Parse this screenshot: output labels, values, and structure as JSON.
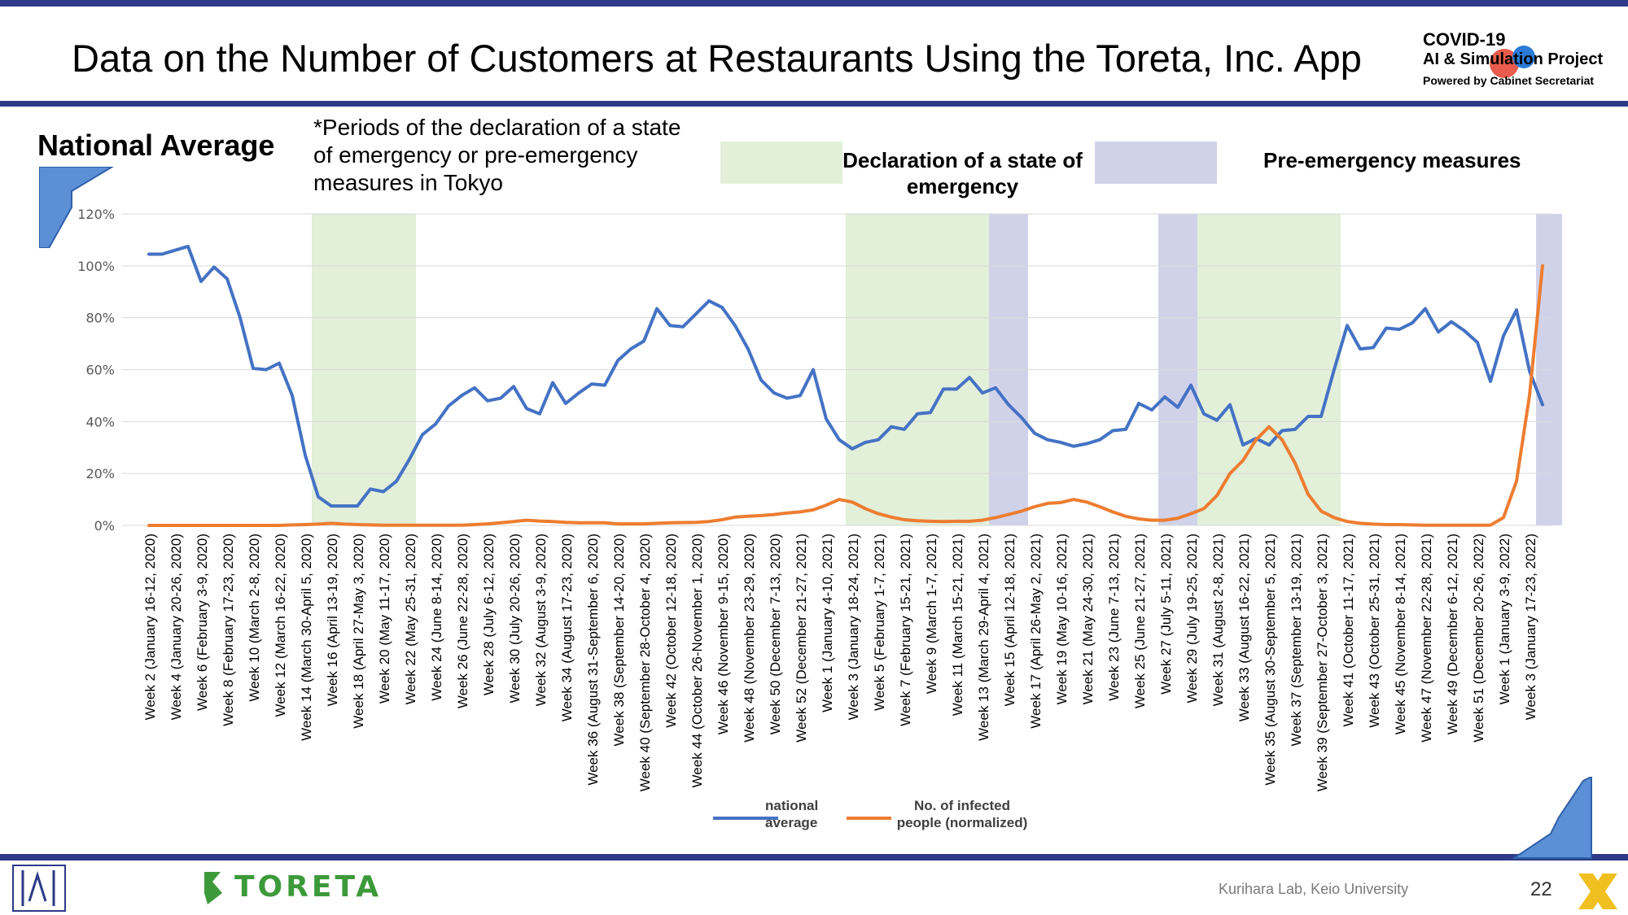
{
  "slide": {
    "title": "Data on the Number of Customers at Restaurants Using the Toreta, Inc. App",
    "logo_line1": "COVID-19",
    "logo_line2": "AI & Simulation Project",
    "logo_line3": "Powered by Cabinet Secretariat",
    "section_label": "National Average",
    "note": "*Periods of the declaration of a state of emergency or pre-emergency measures in Tokyo",
    "toreta_logo": "TORETA",
    "credit": "Kurihara Lab, Keio University",
    "page_number": "22"
  },
  "period_legend": {
    "emergency": "Declaration of a state of emergency",
    "pre_emergency": "Pre-emergency measures"
  },
  "colors": {
    "header_bar": "#2e3a87",
    "national_average": "#4472c4",
    "infected": "#ed7d31",
    "emergency_band": "#e2efd9",
    "pre_emergency_band": "#d0d2ea"
  },
  "chart_data": {
    "type": "line",
    "ylim": [
      0,
      1.2
    ],
    "y_ticks": [
      "0%",
      "20%",
      "40%",
      "60%",
      "80%",
      "100%",
      "120%"
    ],
    "x_labels": [
      "Week 2 (January 16-12, 2020)",
      "Week 4 (January 20-26, 2020)",
      "Week 6 (February 3-9, 2020)",
      "Week 8 (February 17-23, 2020)",
      "Week 10 (March 2-8, 2020)",
      "Week 12 (March 16-22, 2020)",
      "Week 14 (March 30-April 5, 2020)",
      "Week 16 (April 13-19, 2020)",
      "Week 18 (April 27-May 3, 2020)",
      "Week 20 (May 11-17, 2020)",
      "Week 22 (May 25-31, 2020)",
      "Week 24 (June 8-14, 2020)",
      "Week 26 (June 22-28, 2020)",
      "Week 28 (July 6-12, 2020)",
      "Week 30 (July 20-26, 2020)",
      "Week 32 (August 3-9, 2020)",
      "Week 34 (August 17-23, 2020)",
      "Week 36 (August 31-September 6, 2020)",
      "Week 38 (September 14-20, 2020)",
      "Week 40 (September 28-October 4, 2020)",
      "Week 42 (October 12-18, 2020)",
      "Week 44 (October 26-November 1, 2020)",
      "Week 46 (November 9-15, 2020)",
      "Week 48 (November 23-29, 2020)",
      "Week 50 (December 7-13, 2020)",
      "Week 52 (December 21-27, 2021)",
      "Week 1 (January 4-10, 2021)",
      "Week 3 (January 18-24, 2021)",
      "Week 5 (February 1-7, 2021)",
      "Week 7 (February 15-21, 2021)",
      "Week 9 (March 1-7, 2021)",
      "Week 11 (March 15-21, 2021)",
      "Week 13 (March 29-April 4, 2021)",
      "Week 15 (April 12-18, 2021)",
      "Week 17 (April 26-May 2, 2021)",
      "Week 19 (May 10-16, 2021)",
      "Week 21 (May 24-30, 2021)",
      "Week 23 (June 7-13, 2021)",
      "Week 25 (June 21-27, 2021)",
      "Week 27 (July 5-11, 2021)",
      "Week 29 (July 19-25, 2021)",
      "Week 31 (August 2-8, 2021)",
      "Week 33 (August 16-22, 2021)",
      "Week 35 (August 30-September 5, 2021)",
      "Week 37 (September 13-19, 2021)",
      "Week 39 (September 27-October 3, 2021)",
      "Week 41 (October 11-17, 2021)",
      "Week 43 (October 25-31, 2021)",
      "Week 45 (November 8-14, 2021)",
      "Week 47 (November 22-28, 2021)",
      "Week 49 (December 6-12, 2021)",
      "Week 51 (December 20-26, 2022)",
      "Week 1 (January 3-9, 2022)",
      "Week 3 (January 17-23, 2022)"
    ],
    "series": [
      {
        "name": "national average",
        "values": [
          1.045,
          1.045,
          1.06,
          1.075,
          0.94,
          0.995,
          0.95,
          0.8,
          0.605,
          0.6,
          0.625,
          0.5,
          0.27,
          0.11,
          0.075,
          0.075,
          0.075,
          0.14,
          0.13,
          0.17,
          0.255,
          0.35,
          0.39,
          0.46,
          0.5,
          0.53,
          0.48,
          0.49,
          0.535,
          0.45,
          0.43,
          0.55,
          0.47,
          0.51,
          0.545,
          0.54,
          0.635,
          0.68,
          0.71,
          0.835,
          0.77,
          0.765,
          0.815,
          0.865,
          0.84,
          0.77,
          0.68,
          0.56,
          0.51,
          0.49,
          0.5,
          0.6,
          0.41,
          0.33,
          0.295,
          0.32,
          0.33,
          0.38,
          0.37,
          0.43,
          0.435,
          0.525,
          0.525,
          0.57,
          0.51,
          0.53,
          0.465,
          0.415,
          0.355,
          0.33,
          0.32,
          0.305,
          0.315,
          0.33,
          0.365,
          0.37,
          0.47,
          0.445,
          0.495,
          0.455,
          0.54,
          0.43,
          0.405,
          0.465,
          0.31,
          0.335,
          0.31,
          0.365,
          0.37,
          0.42,
          0.42,
          0.6,
          0.77,
          0.68,
          0.685,
          0.76,
          0.755,
          0.78,
          0.835,
          0.745,
          0.785,
          0.75,
          0.705,
          0.555,
          0.73,
          0.83,
          0.595,
          0.465
        ]
      },
      {
        "name": "No. of infected people (normalized)",
        "values": [
          0,
          0,
          0,
          0,
          0,
          0,
          0,
          0,
          0,
          0,
          0,
          0.002,
          0.003,
          0.005,
          0.008,
          0.005,
          0.003,
          0.002,
          0.001,
          0.001,
          0.001,
          0.001,
          0.001,
          0.001,
          0.001,
          0.003,
          0.006,
          0.01,
          0.015,
          0.02,
          0.017,
          0.015,
          0.012,
          0.01,
          0.01,
          0.01,
          0.006,
          0.006,
          0.006,
          0.008,
          0.01,
          0.011,
          0.012,
          0.015,
          0.022,
          0.032,
          0.035,
          0.038,
          0.042,
          0.048,
          0.052,
          0.06,
          0.078,
          0.1,
          0.09,
          0.065,
          0.045,
          0.032,
          0.022,
          0.018,
          0.016,
          0.015,
          0.016,
          0.016,
          0.02,
          0.03,
          0.042,
          0.055,
          0.072,
          0.085,
          0.088,
          0.1,
          0.09,
          0.072,
          0.052,
          0.035,
          0.025,
          0.02,
          0.02,
          0.028,
          0.045,
          0.065,
          0.115,
          0.2,
          0.25,
          0.33,
          0.38,
          0.33,
          0.24,
          0.12,
          0.055,
          0.03,
          0.015,
          0.008,
          0.005,
          0.003,
          0.003,
          0.002,
          0.001,
          0.001,
          0.001,
          0.001,
          0.001,
          0.001,
          0.03,
          0.17,
          0.5,
          1.0
        ]
      }
    ],
    "emergency_periods": [
      [
        13,
        20
      ],
      [
        54,
        67
      ],
      [
        80,
        91
      ]
    ],
    "pre_emergency_periods": [
      [
        65,
        67
      ],
      [
        78,
        80
      ],
      [
        107,
        108
      ]
    ]
  }
}
